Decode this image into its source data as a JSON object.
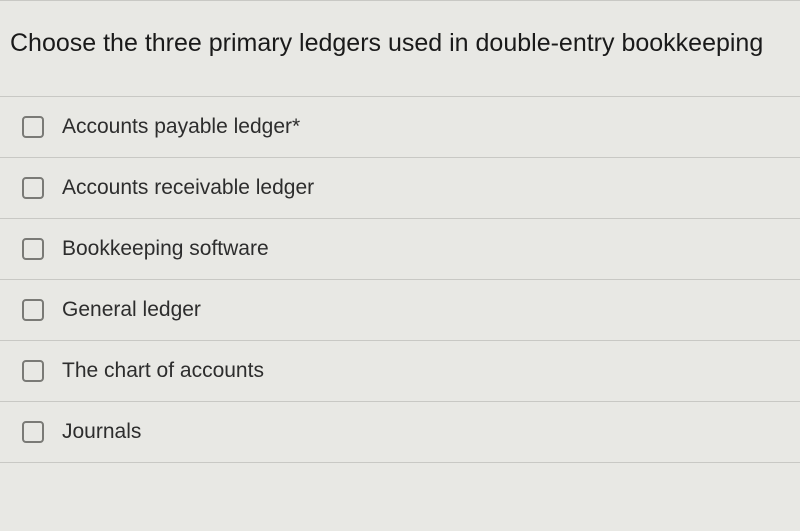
{
  "question": {
    "prompt": "Choose the three primary ledgers used in double-entry bookkeeping",
    "font_size": 25,
    "color": "#1a1a1a"
  },
  "options": [
    {
      "label": "Accounts payable ledger*",
      "checked": false
    },
    {
      "label": "Accounts receivable ledger",
      "checked": false
    },
    {
      "label": "Bookkeeping software",
      "checked": false
    },
    {
      "label": "General ledger",
      "checked": false
    },
    {
      "label": "The chart of accounts",
      "checked": false
    },
    {
      "label": "Journals",
      "checked": false
    }
  ],
  "styling": {
    "background_color": "#e8e8e4",
    "border_color": "#c8c8c4",
    "checkbox_border": "#7a7a76",
    "label_font_size": 21,
    "label_color": "#2d2d2d"
  }
}
